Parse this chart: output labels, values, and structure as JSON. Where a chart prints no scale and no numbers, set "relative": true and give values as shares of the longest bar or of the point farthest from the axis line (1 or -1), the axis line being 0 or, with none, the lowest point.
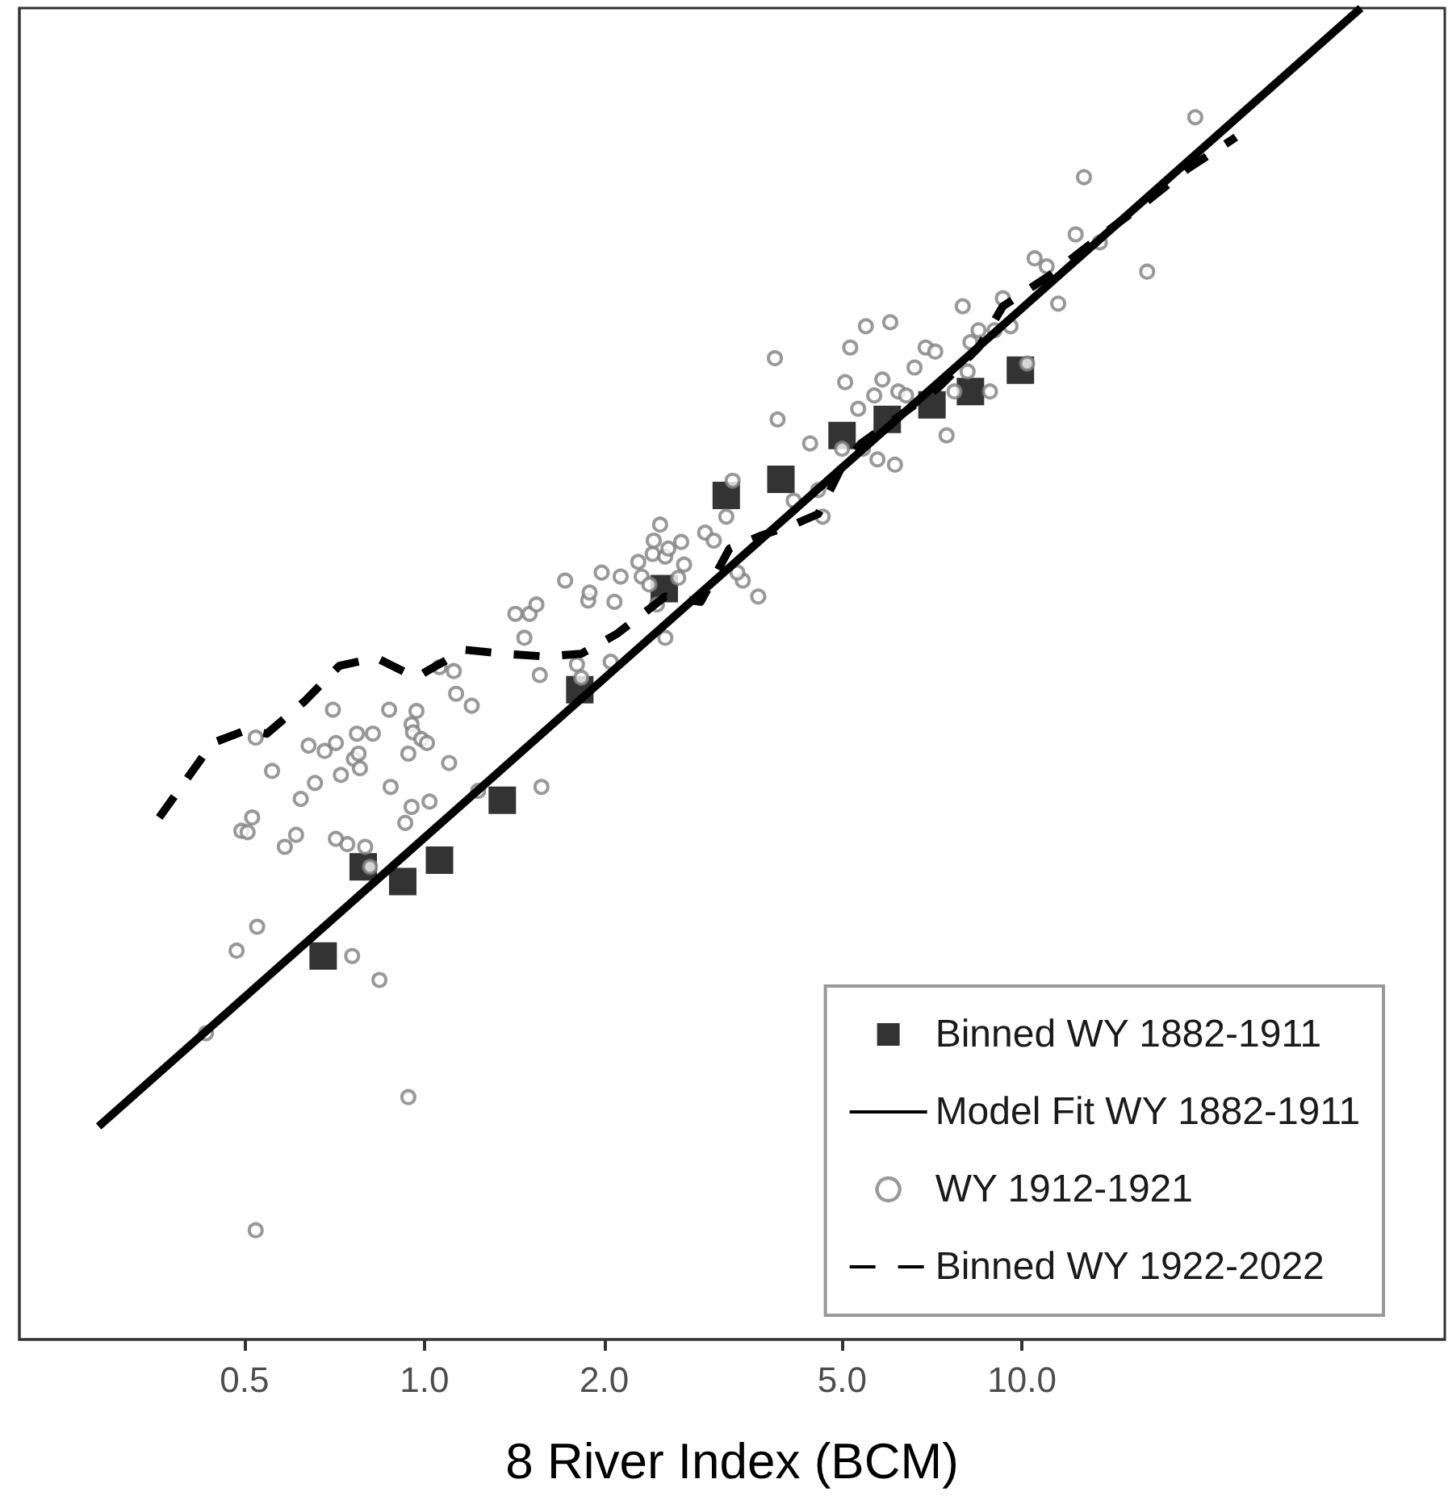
{
  "chart_data": {
    "type": "scatter",
    "relative": true,
    "xlabel": "8 River Index (BCM)",
    "log": "x",
    "grid": false,
    "legend": "bottom right",
    "tick_labels": "x",
    "xlim": [
      0.21,
      51
    ],
    "xticks": [
      0.5,
      {
        "value": 1,
        "label": "1.0"
      },
      {
        "value": 2,
        "label": "2.0"
      },
      {
        "value": 5,
        "label": "5.0"
      },
      {
        "value": 10,
        "label": "10.0"
      }
    ],
    "series": [
      {
        "name": "Binned WY 1882-1911",
        "marker": "square",
        "color": "#000000",
        "x": [
          0.677,
          0.79,
          0.92,
          1.06,
          1.35,
          1.82,
          2.52,
          3.2,
          3.95,
          5.0,
          5.95,
          7.07,
          8.2,
          9.94
        ],
        "values": [
          0.288,
          0.355,
          0.344,
          0.36,
          0.405,
          0.488,
          0.564,
          0.634,
          0.646,
          0.679,
          0.691,
          0.702,
          0.712,
          0.728
        ]
      },
      {
        "name": "Model Fit WY 1882-1911",
        "type": "line",
        "marker": "none",
        "line_style": "solid",
        "color": "#000000",
        "x": [
          0.285,
          36.9
        ],
        "values": [
          0.16,
          1.0
        ]
      },
      {
        "name": "WY 1912-1921",
        "marker": "circle",
        "color": "#808080",
        "x": [
          0.431,
          0.522,
          0.485,
          0.525,
          0.494,
          0.515,
          0.506,
          0.522,
          0.556,
          0.584,
          0.61,
          0.621,
          0.64,
          0.656,
          0.681,
          0.703,
          0.711,
          0.725,
          0.743,
          0.711,
          0.757,
          0.762,
          0.771,
          0.776,
          0.78,
          0.796,
          0.811,
          0.82,
          0.841,
          0.873,
          0.878,
          0.929,
          0.94,
          0.952,
          0.952,
          0.957,
          0.97,
          0.988,
          1.01,
          1.02,
          1.06,
          1.1,
          1.12,
          1.13,
          1.2,
          1.23,
          0.94,
          1.42,
          1.47,
          1.5,
          1.54,
          1.56,
          1.57,
          1.72,
          1.8,
          1.83,
          1.88,
          1.89,
          1.98,
          2.05,
          2.08,
          2.13,
          2.28,
          2.31,
          2.38,
          2.41,
          2.42,
          2.45,
          2.48,
          2.53,
          2.66,
          2.53,
          2.56,
          2.69,
          2.72,
          2.95,
          3.05,
          3.2,
          3.28,
          3.41,
          3.62,
          3.86,
          4.15,
          4.56,
          4.64,
          5.0,
          5.06,
          5.16,
          5.32,
          5.42,
          5.48,
          5.66,
          5.73,
          5.84,
          6.02,
          6.13,
          6.21,
          6.4,
          6.61,
          6.9,
          7.16,
          7.48,
          7.71,
          7.96,
          8.2,
          8.46,
          9.0,
          9.29,
          9.57,
          10.2,
          11.0,
          11.5,
          12.7,
          10.5,
          12.3,
          13.5,
          16.2,
          19.5,
          8.84,
          8.11,
          3.34,
          3.9,
          4.42
        ],
        "values": [
          0.23,
          0.082,
          0.292,
          0.31,
          0.382,
          0.392,
          0.381,
          0.452,
          0.427,
          0.37,
          0.379,
          0.406,
          0.446,
          0.418,
          0.442,
          0.473,
          0.448,
          0.424,
          0.372,
          0.376,
          0.288,
          0.436,
          0.455,
          0.44,
          0.429,
          0.37,
          0.355,
          0.455,
          0.27,
          0.473,
          0.415,
          0.388,
          0.44,
          0.462,
          0.4,
          0.456,
          0.472,
          0.451,
          0.448,
          0.404,
          0.505,
          0.433,
          0.502,
          0.485,
          0.476,
          0.412,
          0.182,
          0.545,
          0.527,
          0.545,
          0.552,
          0.499,
          0.415,
          0.57,
          0.507,
          0.497,
          0.555,
          0.561,
          0.576,
          0.509,
          0.554,
          0.573,
          0.584,
          0.573,
          0.567,
          0.59,
          0.6,
          0.552,
          0.612,
          0.588,
          0.572,
          0.527,
          0.594,
          0.599,
          0.582,
          0.606,
          0.6,
          0.618,
          0.645,
          0.57,
          0.558,
          0.737,
          0.63,
          0.638,
          0.618,
          0.669,
          0.719,
          0.745,
          0.699,
          0.669,
          0.761,
          0.709,
          0.661,
          0.721,
          0.764,
          0.657,
          0.712,
          0.709,
          0.73,
          0.745,
          0.742,
          0.679,
          0.712,
          0.776,
          0.749,
          0.758,
          0.758,
          0.782,
          0.761,
          0.733,
          0.806,
          0.778,
          0.873,
          0.812,
          0.83,
          0.824,
          0.802,
          0.918,
          0.712,
          0.727,
          0.576,
          0.691,
          0.673
        ]
      },
      {
        "name": "Binned WY 1922-2022",
        "type": "line",
        "marker": "none",
        "line_style": "dashed",
        "color": "#000000",
        "x": [
          0.36,
          0.442,
          0.506,
          0.545,
          0.629,
          0.721,
          0.83,
          0.97,
          1.01,
          1.17,
          1.36,
          1.59,
          1.83,
          2.1,
          2.53,
          2.9,
          3.24,
          3.67,
          4.15,
          4.56,
          5.0,
          5.38,
          6.21,
          7.25,
          8.46,
          9.29,
          11.2,
          13.4,
          16.2,
          18.9,
          22.8
        ],
        "values": [
          0.392,
          0.448,
          0.458,
          0.455,
          0.479,
          0.506,
          0.512,
          0.497,
          0.502,
          0.518,
          0.515,
          0.513,
          0.515,
          0.53,
          0.558,
          0.554,
          0.594,
          0.604,
          0.612,
          0.62,
          0.656,
          0.673,
          0.693,
          0.715,
          0.745,
          0.776,
          0.8,
          0.827,
          0.855,
          0.879,
          0.903
        ]
      }
    ]
  }
}
